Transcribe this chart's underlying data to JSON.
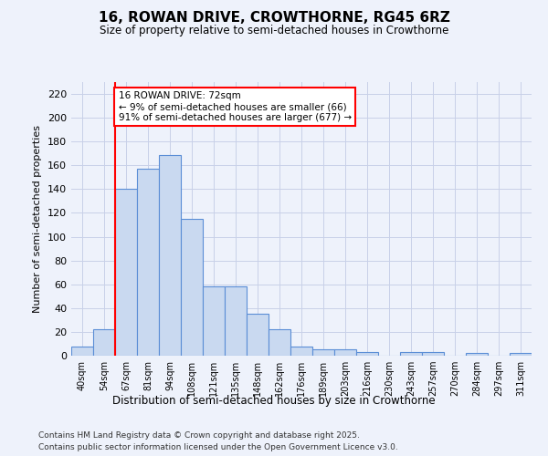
{
  "title": "16, ROWAN DRIVE, CROWTHORNE, RG45 6RZ",
  "subtitle": "Size of property relative to semi-detached houses in Crowthorne",
  "xlabel": "Distribution of semi-detached houses by size in Crowthorne",
  "ylabel": "Number of semi-detached properties",
  "categories": [
    "40sqm",
    "54sqm",
    "67sqm",
    "81sqm",
    "94sqm",
    "108sqm",
    "121sqm",
    "135sqm",
    "148sqm",
    "162sqm",
    "176sqm",
    "189sqm",
    "203sqm",
    "216sqm",
    "230sqm",
    "243sqm",
    "257sqm",
    "270sqm",
    "284sqm",
    "297sqm",
    "311sqm"
  ],
  "values": [
    8,
    22,
    140,
    157,
    169,
    115,
    58,
    58,
    35,
    22,
    8,
    5,
    5,
    3,
    0,
    3,
    3,
    0,
    2,
    0,
    2
  ],
  "bar_color": "#c9d9f0",
  "bar_edge_color": "#5b8ed6",
  "red_line_index": 2,
  "annotation_title": "16 ROWAN DRIVE: 72sqm",
  "annotation_line1": "← 9% of semi-detached houses are smaller (66)",
  "annotation_line2": "91% of semi-detached houses are larger (677) →",
  "ylim": [
    0,
    230
  ],
  "yticks": [
    0,
    20,
    40,
    60,
    80,
    100,
    120,
    140,
    160,
    180,
    200,
    220
  ],
  "footer1": "Contains HM Land Registry data © Crown copyright and database right 2025.",
  "footer2": "Contains public sector information licensed under the Open Government Licence v3.0.",
  "bg_color": "#eef2fb",
  "grid_color": "#c8d0e8"
}
